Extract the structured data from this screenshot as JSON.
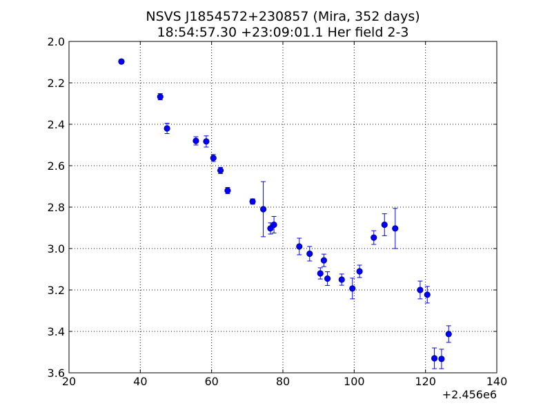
{
  "chart_data": {
    "type": "scatter",
    "title": "NSVS J1854572+230857 (Mira, 352 days)",
    "subtitle": "18:54:57.30 +23:09:01.1 Her field 2-3",
    "xlabel": "",
    "ylabel": "",
    "x_offset_label": "+2.456e6",
    "xlim": [
      20,
      140
    ],
    "ylim": [
      2.0,
      3.6
    ],
    "y_inverted": true,
    "grid": true,
    "grid_style": "dotted",
    "marker_color": "#0000ff",
    "xticks": [
      20,
      40,
      60,
      80,
      100,
      120,
      140
    ],
    "xtick_labels": [
      "20",
      "40",
      "60",
      "80",
      "100",
      "120",
      "140"
    ],
    "yticks": [
      2.0,
      2.2,
      2.4,
      2.6,
      2.8,
      3.0,
      3.2,
      3.4,
      3.6
    ],
    "ytick_labels": [
      "2.0",
      "2.2",
      "2.4",
      "2.6",
      "2.8",
      "3.0",
      "3.2",
      "3.4",
      "3.6"
    ],
    "series": [
      {
        "points": [
          {
            "x": 34.7,
            "y": 2.097,
            "err": 0.01
          },
          {
            "x": 45.6,
            "y": 2.267,
            "err": 0.015
          },
          {
            "x": 47.5,
            "y": 2.42,
            "err": 0.025
          },
          {
            "x": 55.6,
            "y": 2.48,
            "err": 0.02
          },
          {
            "x": 58.5,
            "y": 2.483,
            "err": 0.027
          },
          {
            "x": 60.5,
            "y": 2.563,
            "err": 0.017
          },
          {
            "x": 62.5,
            "y": 2.623,
            "err": 0.015
          },
          {
            "x": 64.5,
            "y": 2.72,
            "err": 0.015
          },
          {
            "x": 71.5,
            "y": 2.773,
            "err": 0.013
          },
          {
            "x": 74.5,
            "y": 2.81,
            "err": 0.133
          },
          {
            "x": 76.5,
            "y": 2.903,
            "err": 0.027
          },
          {
            "x": 77.5,
            "y": 2.885,
            "err": 0.04
          },
          {
            "x": 84.6,
            "y": 2.99,
            "err": 0.04
          },
          {
            "x": 87.5,
            "y": 3.025,
            "err": 0.035
          },
          {
            "x": 90.5,
            "y": 3.12,
            "err": 0.027
          },
          {
            "x": 91.5,
            "y": 3.057,
            "err": 0.03
          },
          {
            "x": 92.5,
            "y": 3.145,
            "err": 0.033
          },
          {
            "x": 96.5,
            "y": 3.15,
            "err": 0.027
          },
          {
            "x": 99.5,
            "y": 3.193,
            "err": 0.05
          },
          {
            "x": 101.5,
            "y": 3.11,
            "err": 0.03
          },
          {
            "x": 105.5,
            "y": 2.947,
            "err": 0.033
          },
          {
            "x": 108.5,
            "y": 2.885,
            "err": 0.053
          },
          {
            "x": 111.5,
            "y": 2.903,
            "err": 0.097
          },
          {
            "x": 118.5,
            "y": 3.2,
            "err": 0.043
          },
          {
            "x": 120.5,
            "y": 3.223,
            "err": 0.04
          },
          {
            "x": 122.5,
            "y": 3.53,
            "err": 0.05
          },
          {
            "x": 124.5,
            "y": 3.533,
            "err": 0.047
          },
          {
            "x": 126.5,
            "y": 3.413,
            "err": 0.04
          }
        ]
      }
    ]
  }
}
